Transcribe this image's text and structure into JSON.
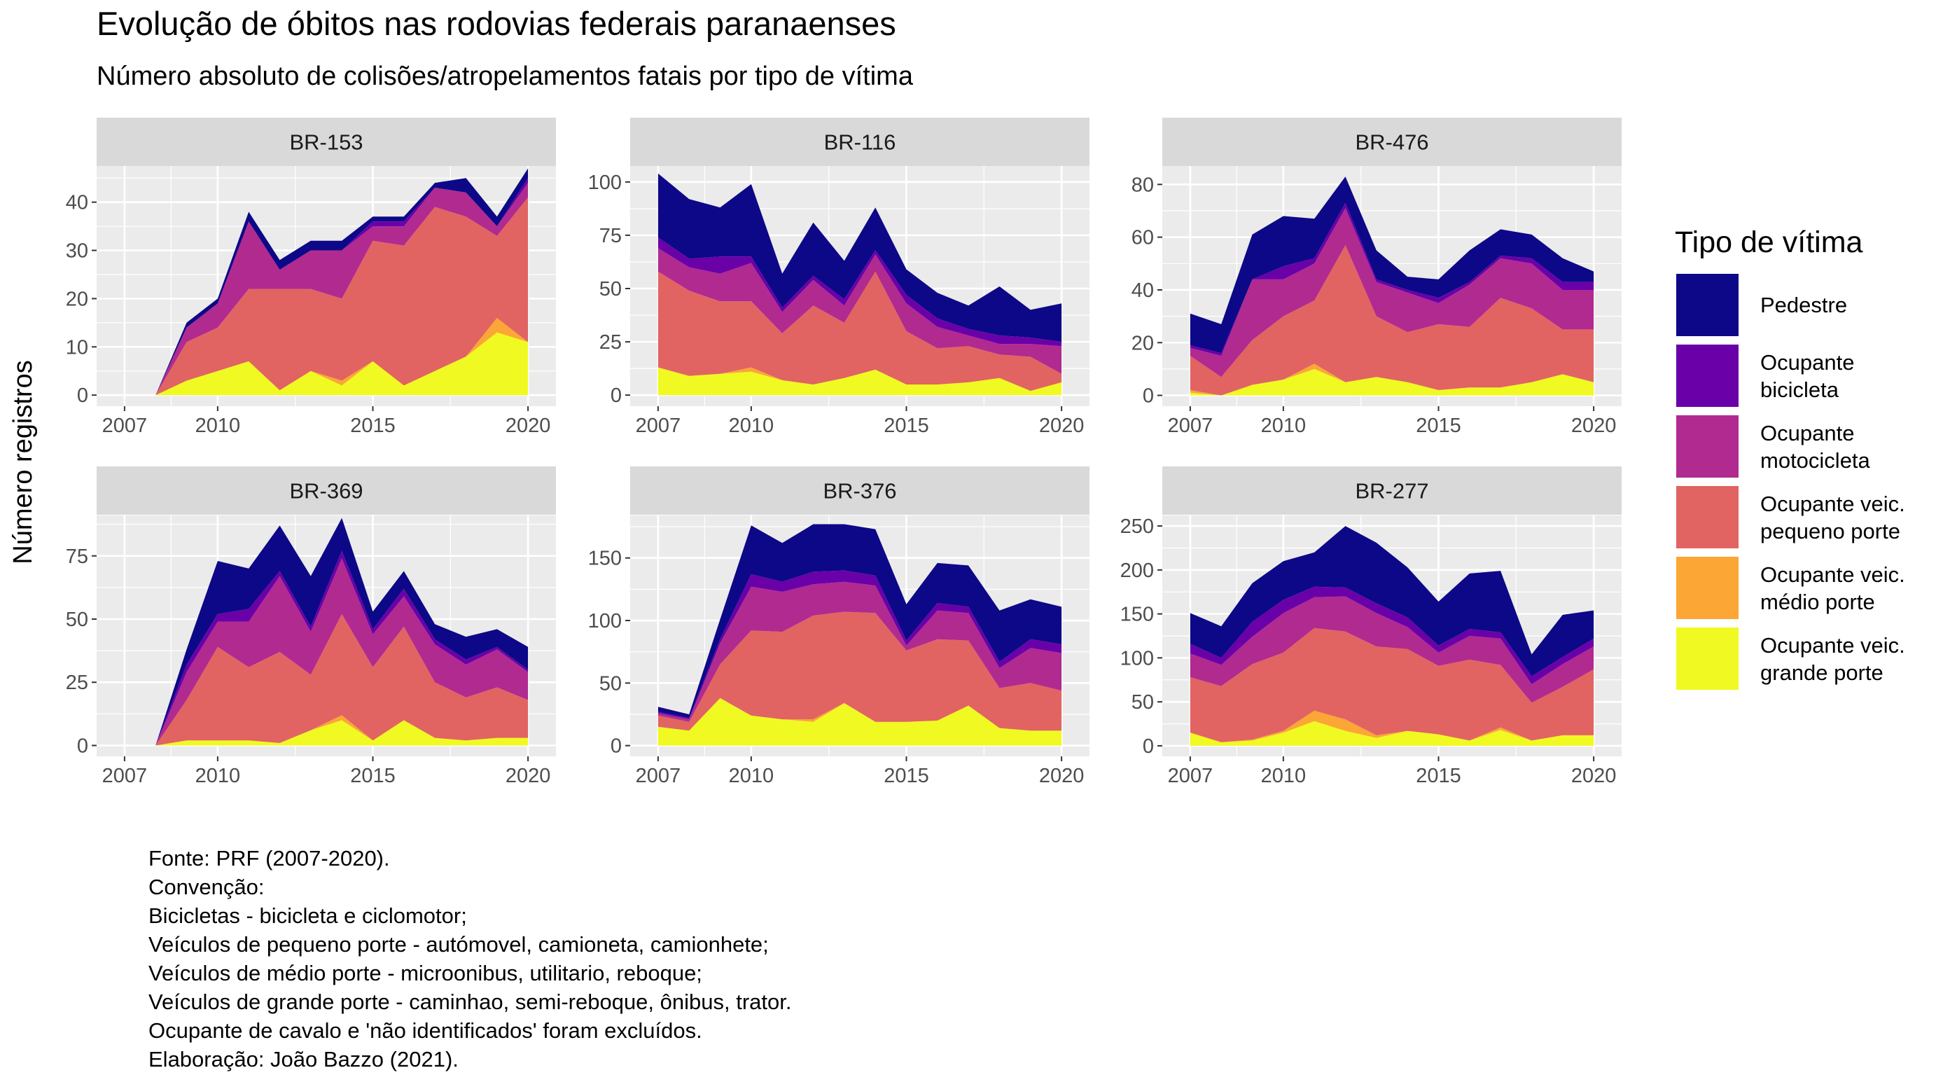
{
  "title": "Evolução de óbitos nas rodovias federais paranaenses",
  "subtitle": "Número absoluto de colisões/atropelamentos fatais por tipo de vítima",
  "ylabel": "Número registros",
  "legend": {
    "title": "Tipo de vítima",
    "items": [
      {
        "label": "Pedestre",
        "color": "#0d0887"
      },
      {
        "label": "Ocupante\nbicicleta",
        "color": "#6a00a8"
      },
      {
        "label": "Ocupante\nmotocicleta",
        "color": "#b12a90"
      },
      {
        "label": "Ocupante veic.\npequeno porte",
        "color": "#e16462"
      },
      {
        "label": "Ocupante veic.\nmédio porte",
        "color": "#fca636"
      },
      {
        "label": "Ocupante veic.\ngrande porte",
        "color": "#f0f921"
      }
    ]
  },
  "caption": [
    "Fonte: PRF (2007-2020).",
    "Convenção:",
    "Bicicletas - bicicleta e ciclomotor;",
    "Veículos de pequeno porte - autómovel, camioneta, camionhete;",
    "Veículos de médio porte - microonibus, utilitario, reboque;",
    "Veículos de grande porte - caminhao, semi-reboque, ônibus, trator.",
    "Ocupante de cavalo e 'não identificados' foram excluídos.",
    "Elaboração: João Bazzo (2021)."
  ],
  "chart_data": {
    "type": "area",
    "stacked": true,
    "x": [
      2007,
      2008,
      2009,
      2010,
      2011,
      2012,
      2013,
      2014,
      2015,
      2016,
      2017,
      2018,
      2019,
      2020
    ],
    "x_ticks": [
      2007,
      2010,
      2015,
      2020
    ],
    "xlim": [
      2006.1,
      2020.9
    ],
    "series_names": [
      "Pedestre",
      "Ocupante bicicleta",
      "Ocupante motocicleta",
      "Ocupante veic. pequeno porte",
      "Ocupante veic. médio porte",
      "Ocupante veic. grande porte"
    ],
    "colors": [
      "#0d0887",
      "#6a00a8",
      "#b12a90",
      "#e16462",
      "#fca636",
      "#f0f921"
    ],
    "background": "#ebebeb",
    "strip_background": "#d9d9d9",
    "grid": true,
    "legend_position": "right",
    "facets": [
      {
        "name": "BR-153",
        "ylim": [
          -2.3,
          47.5
        ],
        "yticks": [
          0,
          10,
          20,
          30,
          40
        ],
        "series": [
          {
            "name": "Pedestre",
            "values": [
              null,
              0,
              1,
              1,
              2,
              2,
              2,
              2,
              1,
              1,
              1,
              3,
              2,
              2
            ]
          },
          {
            "name": "Ocupante bicicleta",
            "values": [
              null,
              0,
              0,
              0,
              0,
              0,
              0,
              0,
              1,
              1,
              0,
              0,
              0,
              1
            ]
          },
          {
            "name": "Ocupante motocicleta",
            "values": [
              null,
              0,
              3,
              5,
              14,
              4,
              8,
              10,
              3,
              4,
              4,
              5,
              2,
              3
            ]
          },
          {
            "name": "Ocupante veic. pequeno porte",
            "values": [
              null,
              0,
              8,
              9,
              15,
              21,
              17,
              17,
              25,
              29,
              34,
              29,
              17,
              30
            ]
          },
          {
            "name": "Ocupante veic. médio porte",
            "values": [
              null,
              0,
              0,
              0,
              0,
              0,
              0,
              1,
              0,
              0,
              0,
              0,
              3,
              0
            ]
          },
          {
            "name": "Ocupante veic. grande porte",
            "values": [
              null,
              0,
              3,
              5,
              7,
              1,
              5,
              2,
              7,
              2,
              5,
              8,
              13,
              11
            ]
          }
        ]
      },
      {
        "name": "BR-116",
        "ylim": [
          -5.2,
          107.5
        ],
        "yticks": [
          0,
          25,
          50,
          75,
          100
        ],
        "series": [
          {
            "name": "Pedestre",
            "values": [
              30,
              28,
              23,
              34,
              16,
              25,
              18,
              20,
              12,
              12,
              11,
              23,
              13,
              18
            ]
          },
          {
            "name": "Ocupante bicicleta",
            "values": [
              5,
              4,
              8,
              3,
              2,
              2,
              3,
              2,
              4,
              4,
              3,
              4,
              3,
              2
            ]
          },
          {
            "name": "Ocupante motocicleta",
            "values": [
              11,
              11,
              13,
              18,
              10,
              12,
              8,
              8,
              13,
              10,
              5,
              5,
              6,
              13
            ]
          },
          {
            "name": "Ocupante veic. pequeno porte",
            "values": [
              45,
              40,
              34,
              31,
              22,
              37,
              26,
              46,
              25,
              17,
              17,
              11,
              16,
              4
            ]
          },
          {
            "name": "Ocupante veic. médio porte",
            "values": [
              0,
              0,
              0,
              2,
              0,
              0,
              0,
              0,
              0,
              0,
              0,
              0,
              0,
              0
            ]
          },
          {
            "name": "Ocupante veic. grande porte",
            "values": [
              13,
              9,
              10,
              11,
              7,
              5,
              8,
              12,
              5,
              5,
              6,
              8,
              2,
              6
            ]
          }
        ]
      },
      {
        "name": "BR-476",
        "ylim": [
          -4.1,
          87.0
        ],
        "yticks": [
          0,
          20,
          40,
          60,
          80
        ],
        "series": [
          {
            "name": "Pedestre",
            "values": [
              12,
              11,
              17,
              19,
              15,
              10,
              11,
              5,
              7,
              12,
              10,
              9,
              9,
              4
            ]
          },
          {
            "name": "Ocupante bicicleta",
            "values": [
              1,
              1,
              0,
              5,
              2,
              2,
              1,
              1,
              2,
              1,
              1,
              2,
              3,
              3
            ]
          },
          {
            "name": "Ocupante motocicleta",
            "values": [
              3,
              8,
              23,
              14,
              14,
              14,
              13,
              15,
              8,
              16,
              15,
              17,
              15,
              15
            ]
          },
          {
            "name": "Ocupante veic. pequeno porte",
            "values": [
              13,
              7,
              17,
              24,
              24,
              52,
              23,
              19,
              25,
              23,
              34,
              28,
              17,
              20
            ]
          },
          {
            "name": "Ocupante veic. médio porte",
            "values": [
              1,
              0,
              0,
              0,
              2,
              0,
              0,
              0,
              0,
              0,
              0,
              0,
              0,
              0
            ]
          },
          {
            "name": "Ocupante veic. grande porte",
            "values": [
              1,
              0,
              4,
              6,
              10,
              5,
              7,
              5,
              2,
              3,
              3,
              5,
              8,
              5
            ]
          }
        ]
      },
      {
        "name": "BR-369",
        "ylim": [
          -4.3,
          91.0
        ],
        "yticks": [
          0,
          25,
          50,
          75
        ],
        "series": [
          {
            "name": "Pedestre",
            "values": [
              null,
              0,
              6,
              21,
              16,
              18,
              20,
              13,
              7,
              7,
              6,
              9,
              7,
              9
            ]
          },
          {
            "name": "Ocupante bicicleta",
            "values": [
              null,
              0,
              3,
              3,
              5,
              2,
              2,
              3,
              2,
              3,
              2,
              2,
              1,
              1
            ]
          },
          {
            "name": "Ocupante motocicleta",
            "values": [
              null,
              0,
              11,
              10,
              18,
              30,
              17,
              22,
              13,
              12,
              15,
              13,
              15,
              11
            ]
          },
          {
            "name": "Ocupante veic. pequeno porte",
            "values": [
              null,
              0,
              16,
              37,
              29,
              36,
              22,
              40,
              29,
              37,
              22,
              17,
              20,
              15
            ]
          },
          {
            "name": "Ocupante veic. médio porte",
            "values": [
              null,
              0,
              0,
              0,
              0,
              0,
              0,
              2,
              0,
              0,
              0,
              0,
              0,
              0
            ]
          },
          {
            "name": "Ocupante veic. grande porte",
            "values": [
              null,
              0,
              2,
              2,
              2,
              1,
              6,
              10,
              2,
              10,
              3,
              2,
              3,
              3
            ]
          }
        ]
      },
      {
        "name": "BR-376",
        "ylim": [
          -8.6,
          184.0
        ],
        "yticks": [
          0,
          50,
          100,
          150
        ],
        "series": [
          {
            "name": "Pedestre",
            "values": [
              4,
              3,
              16,
              39,
              31,
              38,
              37,
              37,
              29,
              32,
              33,
              41,
              32,
              30
            ]
          },
          {
            "name": "Ocupante bicicleta",
            "values": [
              1,
              1,
              3,
              10,
              8,
              10,
              9,
              8,
              4,
              6,
              5,
              5,
              7,
              7
            ]
          },
          {
            "name": "Ocupante motocicleta",
            "values": [
              2,
              2,
              17,
              35,
              32,
              25,
              24,
              22,
              4,
              23,
              22,
              16,
              28,
              30
            ]
          },
          {
            "name": "Ocupante veic. pequeno porte",
            "values": [
              9,
              7,
              27,
              68,
              70,
              83,
              73,
              87,
              57,
              65,
              52,
              32,
              38,
              32
            ]
          },
          {
            "name": "Ocupante veic. médio porte",
            "values": [
              0,
              0,
              0,
              0,
              0,
              2,
              0,
              0,
              0,
              0,
              0,
              0,
              0,
              0
            ]
          },
          {
            "name": "Ocupante veic. grande porte",
            "values": [
              15,
              12,
              38,
              24,
              21,
              19,
              34,
              19,
              19,
              20,
              32,
              14,
              12,
              12
            ]
          }
        ]
      },
      {
        "name": "BR-277",
        "ylim": [
          -12.0,
          262.0
        ],
        "yticks": [
          0,
          50,
          100,
          150,
          200,
          250
        ],
        "series": [
          {
            "name": "Pedestre",
            "values": [
              35,
              36,
              44,
              44,
              39,
              70,
              69,
              57,
              50,
              63,
              70,
              25,
              48,
              32
            ]
          },
          {
            "name": "Ocupante bicicleta",
            "values": [
              11,
              8,
              17,
              15,
              12,
              10,
              11,
              11,
              8,
              8,
              7,
              9,
              8,
              9
            ]
          },
          {
            "name": "Ocupante motocicleta",
            "values": [
              27,
              24,
              31,
              45,
              35,
              40,
              38,
              25,
              15,
              27,
              30,
              21,
              26,
              26
            ]
          },
          {
            "name": "Ocupante veic. pequeno porte",
            "values": [
              63,
              64,
              86,
              89,
              94,
              100,
              101,
              93,
              78,
              92,
              71,
              43,
              55,
              75
            ]
          },
          {
            "name": "Ocupante veic. médio porte",
            "values": [
              0,
              0,
              1,
              2,
              12,
              13,
              3,
              0,
              0,
              0,
              3,
              0,
              0,
              0
            ]
          },
          {
            "name": "Ocupante veic. grande porte",
            "values": [
              15,
              4,
              6,
              15,
              28,
              17,
              9,
              17,
              13,
              6,
              18,
              6,
              12,
              12
            ]
          }
        ]
      }
    ]
  }
}
